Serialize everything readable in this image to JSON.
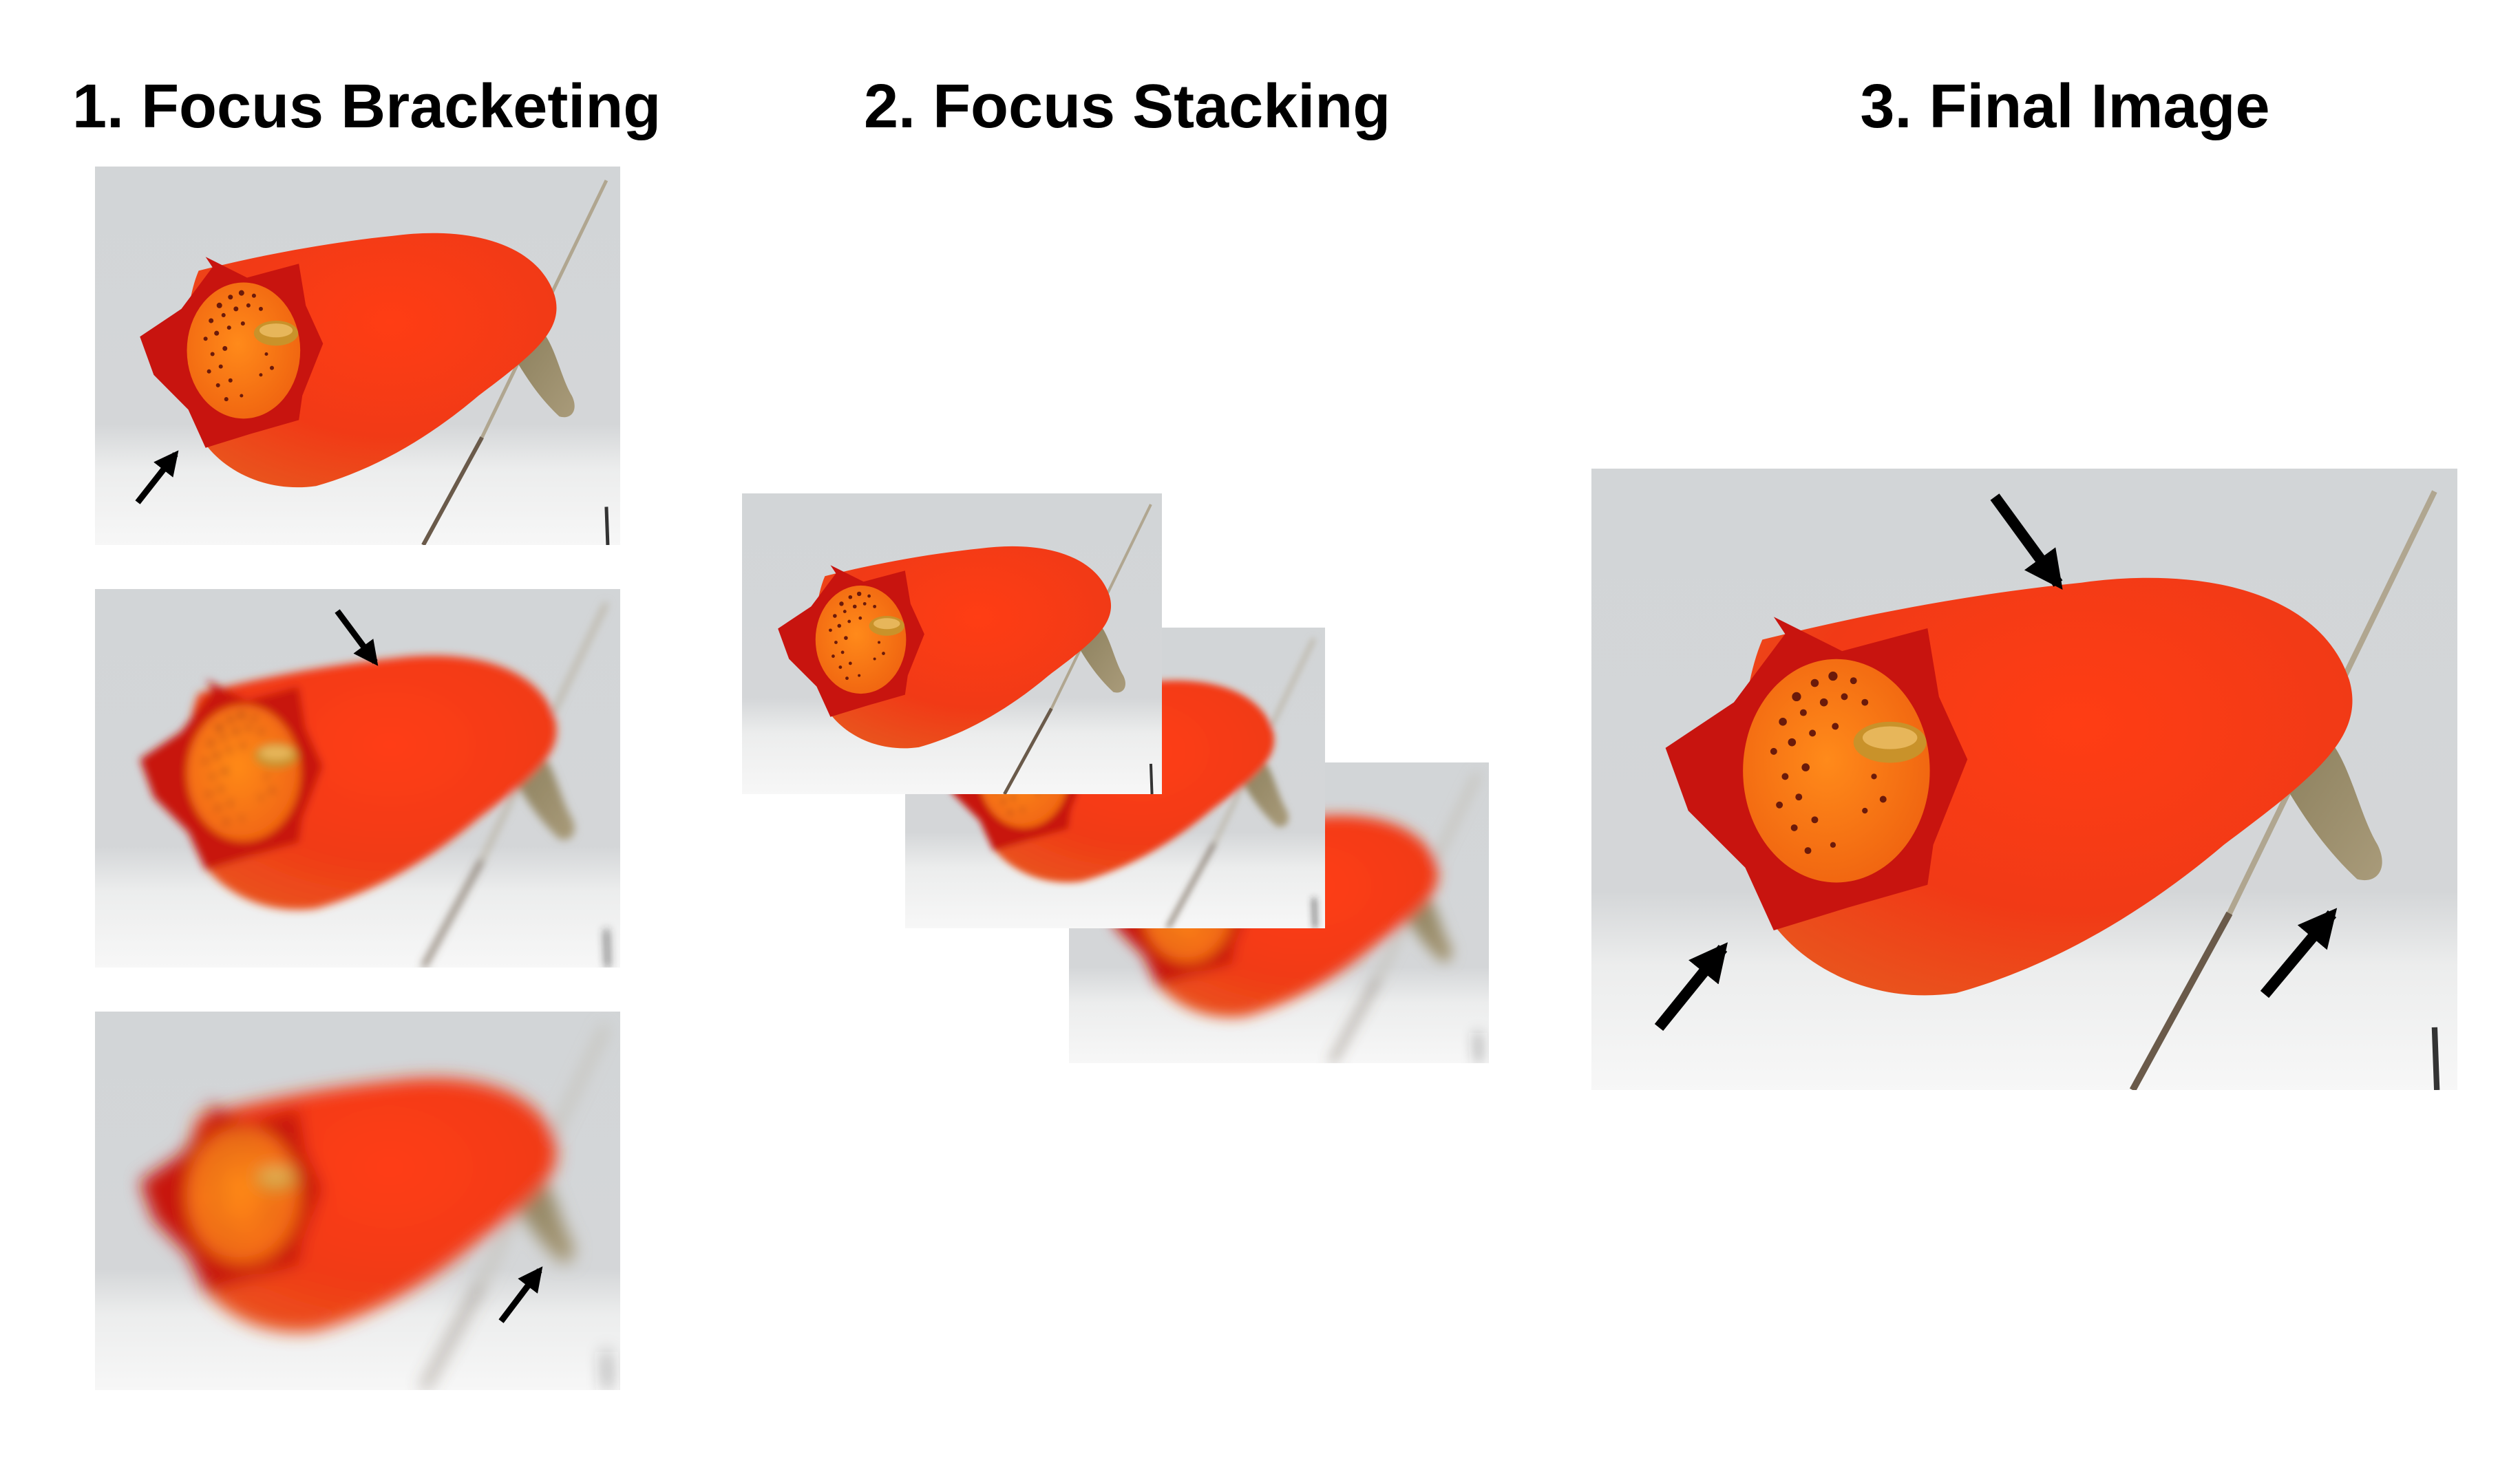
{
  "steps": [
    {
      "number": "1.",
      "label": "Focus Bracketing",
      "text": "1. Focus Bracketing"
    },
    {
      "number": "2.",
      "label": "Focus Stacking",
      "text": "2. Focus Stacking"
    },
    {
      "number": "3.",
      "label": "Final Image",
      "text": "3. Final Image"
    }
  ],
  "colors": {
    "background": "#ffffff",
    "photo_backdrop": "#d3d6d8",
    "flower_body": "#f0401a",
    "flower_lip": "#c8100e",
    "flower_throat": "#ff7a10",
    "throat_spots": "#6b1a0a",
    "stem": "#8e8a6a",
    "arrow": "#000000"
  },
  "icons": [
    "flower-photo",
    "arrow-icon"
  ]
}
